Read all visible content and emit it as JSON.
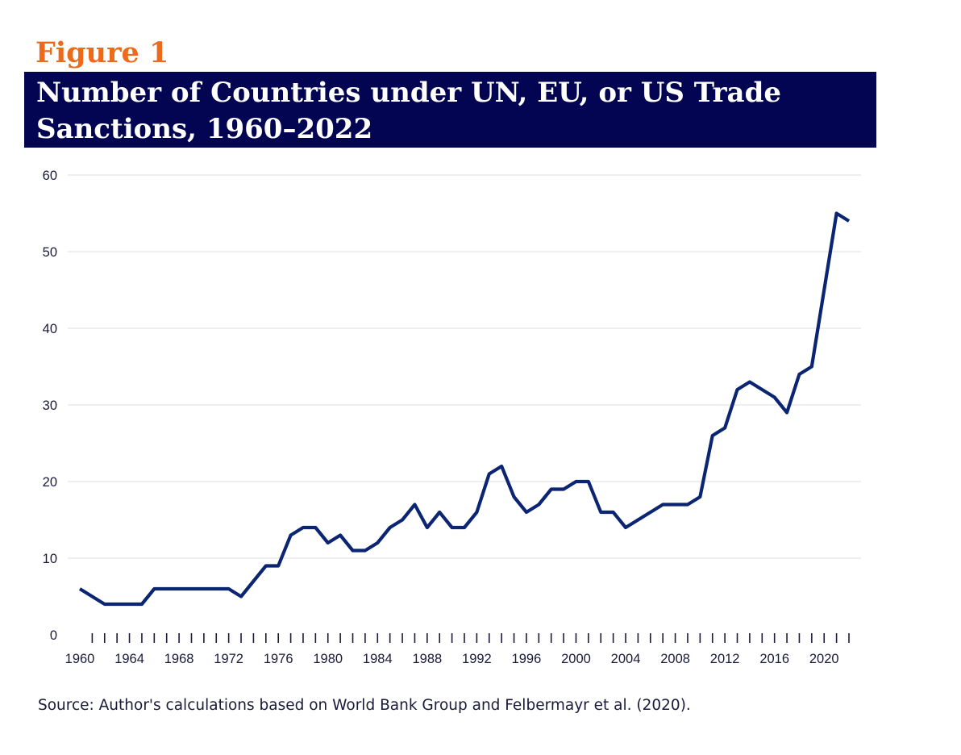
{
  "figure_label": "Figure 1",
  "title_lines": [
    "Number of Countries under UN, EU, or US Trade",
    "Sanctions, 1960–2022"
  ],
  "source": "Source: Author's calculations based on World Bank Group and Felbermayr et al. (2020).",
  "colors": {
    "figure_label": "#ec6a1a",
    "title_background": "#030552",
    "line": "#0b2573",
    "grid": "#e3e3e3"
  },
  "chart_data": {
    "type": "line",
    "title": "Number of Countries under UN, EU, or US Trade Sanctions, 1960–2022",
    "xlabel": "",
    "ylabel": "",
    "xlim": [
      1960,
      2022
    ],
    "ylim": [
      0,
      60
    ],
    "y_ticks": [
      0,
      10,
      20,
      30,
      40,
      50,
      60
    ],
    "x_tick_labels": [
      "1960",
      "1964",
      "1968",
      "1972",
      "1976",
      "1980",
      "1984",
      "1988",
      "1992",
      "1996",
      "2000",
      "2004",
      "2008",
      "2012",
      "2016",
      "2020"
    ],
    "grid": "horizontal",
    "series": [
      {
        "x": [
          1960,
          1961,
          1962,
          1963,
          1964,
          1965,
          1966,
          1967,
          1968,
          1969,
          1970,
          1971,
          1972,
          1973,
          1974,
          1975,
          1976,
          1977,
          1978,
          1979,
          1980,
          1981,
          1982,
          1983,
          1984,
          1985,
          1986,
          1987,
          1988,
          1989,
          1990,
          1991,
          1992,
          1993,
          1994,
          1995,
          1996,
          1997,
          1998,
          1999,
          2000,
          2001,
          2002,
          2003,
          2004,
          2005,
          2006,
          2007,
          2008,
          2009,
          2010,
          2011,
          2012,
          2013,
          2014,
          2015,
          2016,
          2017,
          2018,
          2019,
          2020,
          2021,
          2022
        ],
        "values": [
          6,
          5,
          4,
          4,
          4,
          4,
          6,
          6,
          6,
          6,
          6,
          6,
          6,
          5,
          7,
          9,
          9,
          13,
          14,
          14,
          12,
          13,
          11,
          11,
          12,
          14,
          15,
          17,
          14,
          16,
          14,
          14,
          16,
          21,
          22,
          18,
          16,
          17,
          19,
          19,
          20,
          20,
          16,
          16,
          14,
          15,
          16,
          17,
          17,
          17,
          18,
          26,
          27,
          32,
          33,
          32,
          31,
          29,
          34,
          35,
          45,
          55,
          54
        ]
      }
    ]
  }
}
